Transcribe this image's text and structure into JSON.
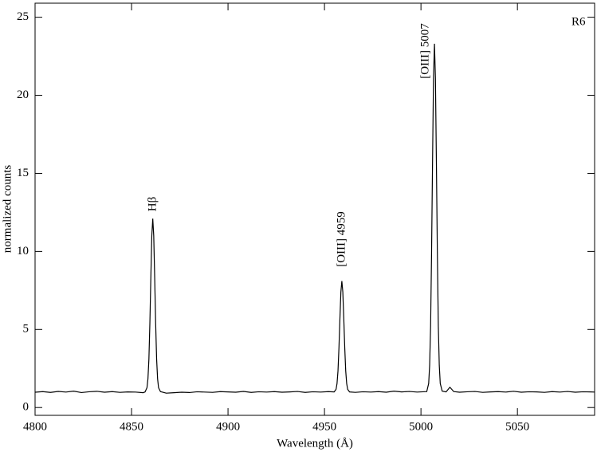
{
  "chart_data": {
    "type": "line",
    "xlabel": "Wavelength  (Å)",
    "ylabel": "normalized counts",
    "annotations": [
      "Hβ",
      "[OIII] 4959",
      "[OIII] 5007",
      "R6"
    ],
    "xlim": [
      4800,
      5090
    ],
    "ylim": [
      -0.5,
      25.9
    ],
    "xticks": [
      4800,
      4850,
      4900,
      4950,
      5000,
      5050
    ],
    "yticks": [
      0,
      5,
      10,
      15,
      20,
      25
    ],
    "series": [
      {
        "color": "#000000",
        "x": [
          4800,
          4804,
          4808,
          4812,
          4816,
          4820,
          4824,
          4828,
          4832,
          4836,
          4840,
          4844,
          4848,
          4852,
          4856,
          4857,
          4858,
          4858.5,
          4859,
          4859.5,
          4860,
          4860.5,
          4861,
          4861.5,
          4862,
          4862.5,
          4863,
          4863.5,
          4864,
          4865,
          4868,
          4872,
          4876,
          4880,
          4884,
          4888,
          4892,
          4896,
          4900,
          4904,
          4908,
          4912,
          4916,
          4920,
          4924,
          4928,
          4932,
          4936,
          4940,
          4944,
          4948,
          4952,
          4955,
          4956,
          4956.5,
          4957,
          4957.5,
          4958,
          4958.5,
          4959,
          4959.5,
          4960,
          4960.5,
          4961,
          4961.5,
          4962,
          4963,
          4966,
          4970,
          4974,
          4978,
          4982,
          4986,
          4990,
          4994,
          4998,
          5003,
          5004,
          5004.5,
          5005,
          5005.5,
          5006,
          5006.5,
          5007,
          5007.5,
          5008,
          5008.5,
          5009,
          5009.5,
          5010,
          5011,
          5013,
          5015,
          5017,
          5020,
          5024,
          5028,
          5032,
          5036,
          5040,
          5044,
          5048,
          5052,
          5056,
          5060,
          5064,
          5068,
          5072,
          5076,
          5080,
          5084,
          5088,
          5090
        ],
        "values": [
          0.98,
          1.02,
          0.97,
          1.03,
          0.99,
          1.05,
          0.96,
          1.01,
          1.04,
          0.98,
          1.02,
          0.97,
          1.0,
          0.99,
          0.95,
          1.0,
          1.27,
          1.84,
          3.1,
          5.4,
          8.3,
          11.0,
          12.1,
          11.0,
          8.3,
          5.4,
          3.1,
          1.84,
          1.27,
          1.02,
          0.92,
          0.95,
          0.98,
          0.96,
          1.01,
          0.99,
          0.97,
          1.02,
          1.0,
          0.98,
          1.03,
          0.97,
          1.01,
          0.99,
          1.02,
          0.98,
          1.0,
          1.03,
          0.97,
          1.01,
          0.99,
          1.02,
          1.0,
          1.17,
          1.54,
          2.35,
          3.84,
          5.7,
          7.4,
          8.1,
          7.4,
          5.7,
          3.84,
          2.35,
          1.54,
          1.17,
          1.0,
          0.97,
          1.01,
          0.99,
          1.02,
          0.98,
          1.05,
          1.0,
          1.03,
          0.99,
          1.02,
          1.54,
          2.7,
          5.2,
          9.9,
          15.7,
          21.1,
          23.3,
          21.1,
          15.7,
          9.9,
          5.2,
          2.7,
          1.54,
          1.05,
          1.0,
          1.3,
          1.02,
          0.98,
          1.01,
          1.03,
          0.97,
          1.0,
          1.02,
          0.99,
          1.04,
          0.98,
          1.01,
          1.0,
          0.97,
          1.02,
          0.99,
          1.03,
          0.98,
          1.01,
          1.0,
          0.99
        ]
      }
    ]
  }
}
